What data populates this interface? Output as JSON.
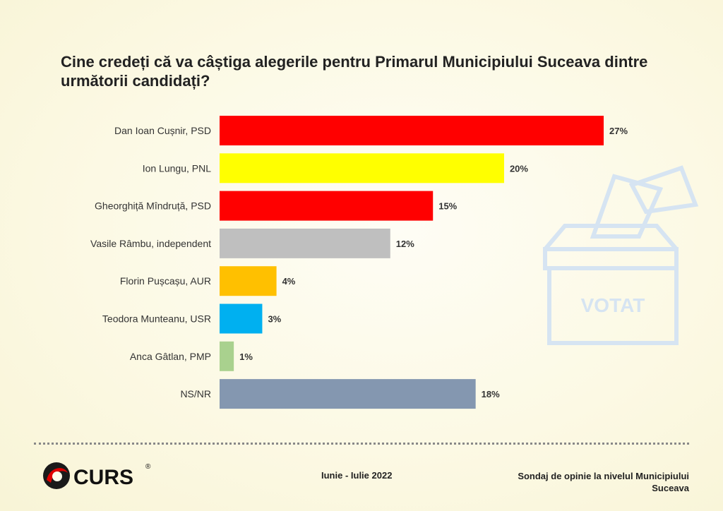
{
  "chart_data": {
    "type": "bar",
    "orientation": "horizontal",
    "title": "Cine credeți că va câștiga alegerile pentru Primarul Municipiului Suceava dintre următorii candidați?",
    "categories": [
      "Dan Ioan Cușnir, PSD",
      "Ion Lungu, PNL",
      "Gheorghiță Mîndruță, PSD",
      "Vasile Râmbu, independent",
      "Florin Pușcașu, AUR",
      "Teodora Munteanu, USR",
      "Anca Gâtlan, PMP",
      "NS/NR"
    ],
    "values": [
      27,
      20,
      15,
      12,
      4,
      3,
      1,
      18
    ],
    "value_labels": [
      "27%",
      "20%",
      "15%",
      "12%",
      "4%",
      "3%",
      "1%",
      "18%"
    ],
    "colors": [
      "#ff0000",
      "#ffff00",
      "#ff0000",
      "#bfbfbf",
      "#ffc000",
      "#00b0f0",
      "#a9d18e",
      "#8497b0"
    ],
    "xlim": [
      0,
      27
    ],
    "grid": false,
    "legend": "none"
  },
  "watermark": {
    "text": "VOTAT",
    "icon": "ballot-box-icon"
  },
  "footer": {
    "brand": "CURS",
    "brand_mark": "®",
    "date": "Iunie - Iulie 2022",
    "note": "Sondaj de opinie la nivelul Municipiului Suceava"
  },
  "colors": {
    "text": "#222222",
    "watermark": "#d6e4f2"
  }
}
